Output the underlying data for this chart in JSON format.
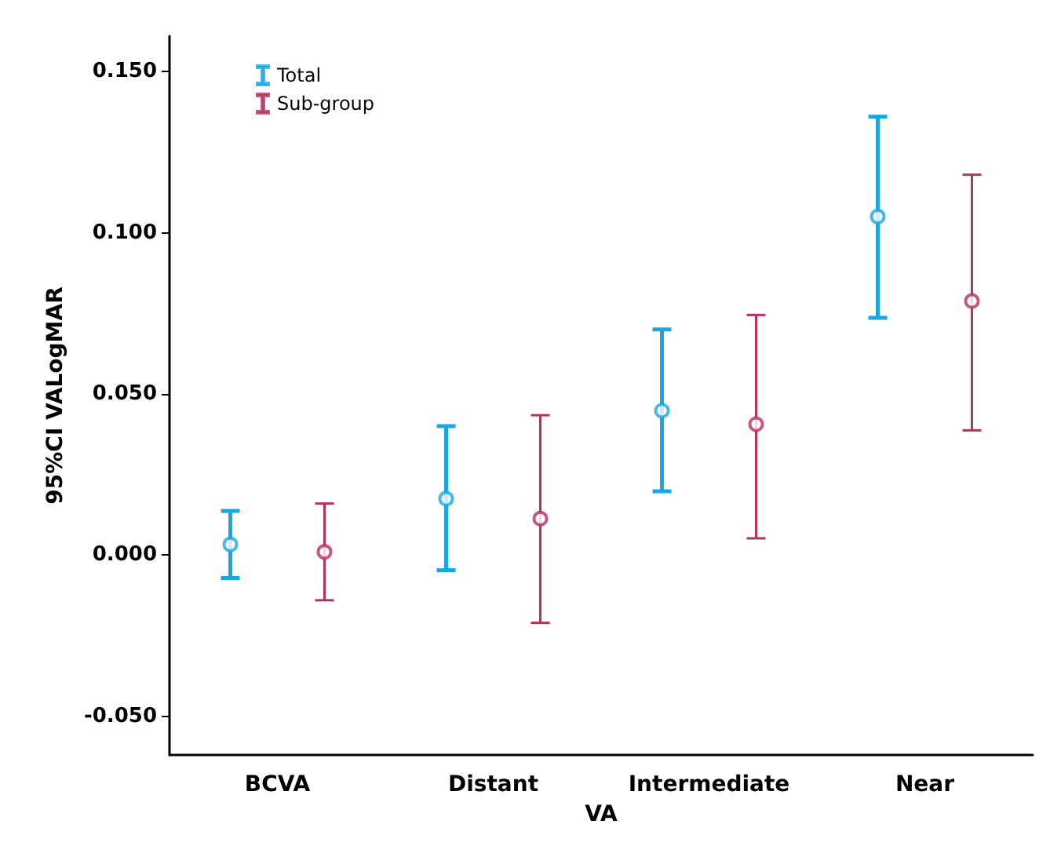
{
  "chart_data": {
    "type": "scatter",
    "xlabel": "VA",
    "ylabel": "95%CI VALogMAR",
    "categories": [
      "BCVA",
      "Distant",
      "Intermediate",
      "Near"
    ],
    "series": [
      {
        "name": "Total",
        "color": "#1aa7e0",
        "values": [
          0.0033,
          0.0175,
          0.0448,
          0.105
        ],
        "errors": [
          [
            -0.0071,
            0.0137
          ],
          [
            -0.0047,
            0.04
          ],
          [
            0.0198,
            0.07
          ],
          [
            0.0736,
            0.136
          ]
        ]
      },
      {
        "name": "Sub-group",
        "color": "#b5325f",
        "values": [
          0.001,
          0.0113,
          0.0406,
          0.0788
        ],
        "errors": [
          [
            -0.014,
            0.016
          ],
          [
            -0.021,
            0.0434
          ],
          [
            0.0052,
            0.0745
          ],
          [
            0.0387,
            0.118
          ]
        ]
      }
    ],
    "ylim": [
      -0.062,
      0.161
    ],
    "yticks": [
      {
        "value": -0.05,
        "label": "-0.050"
      },
      {
        "value": 0,
        "label": "0.000"
      },
      {
        "value": 0.05,
        "label": "0.050"
      },
      {
        "value": 0.1,
        "label": "0.100"
      },
      {
        "value": 0.15,
        "label": "0.150"
      }
    ],
    "legend": "top left",
    "marker": "circle"
  }
}
